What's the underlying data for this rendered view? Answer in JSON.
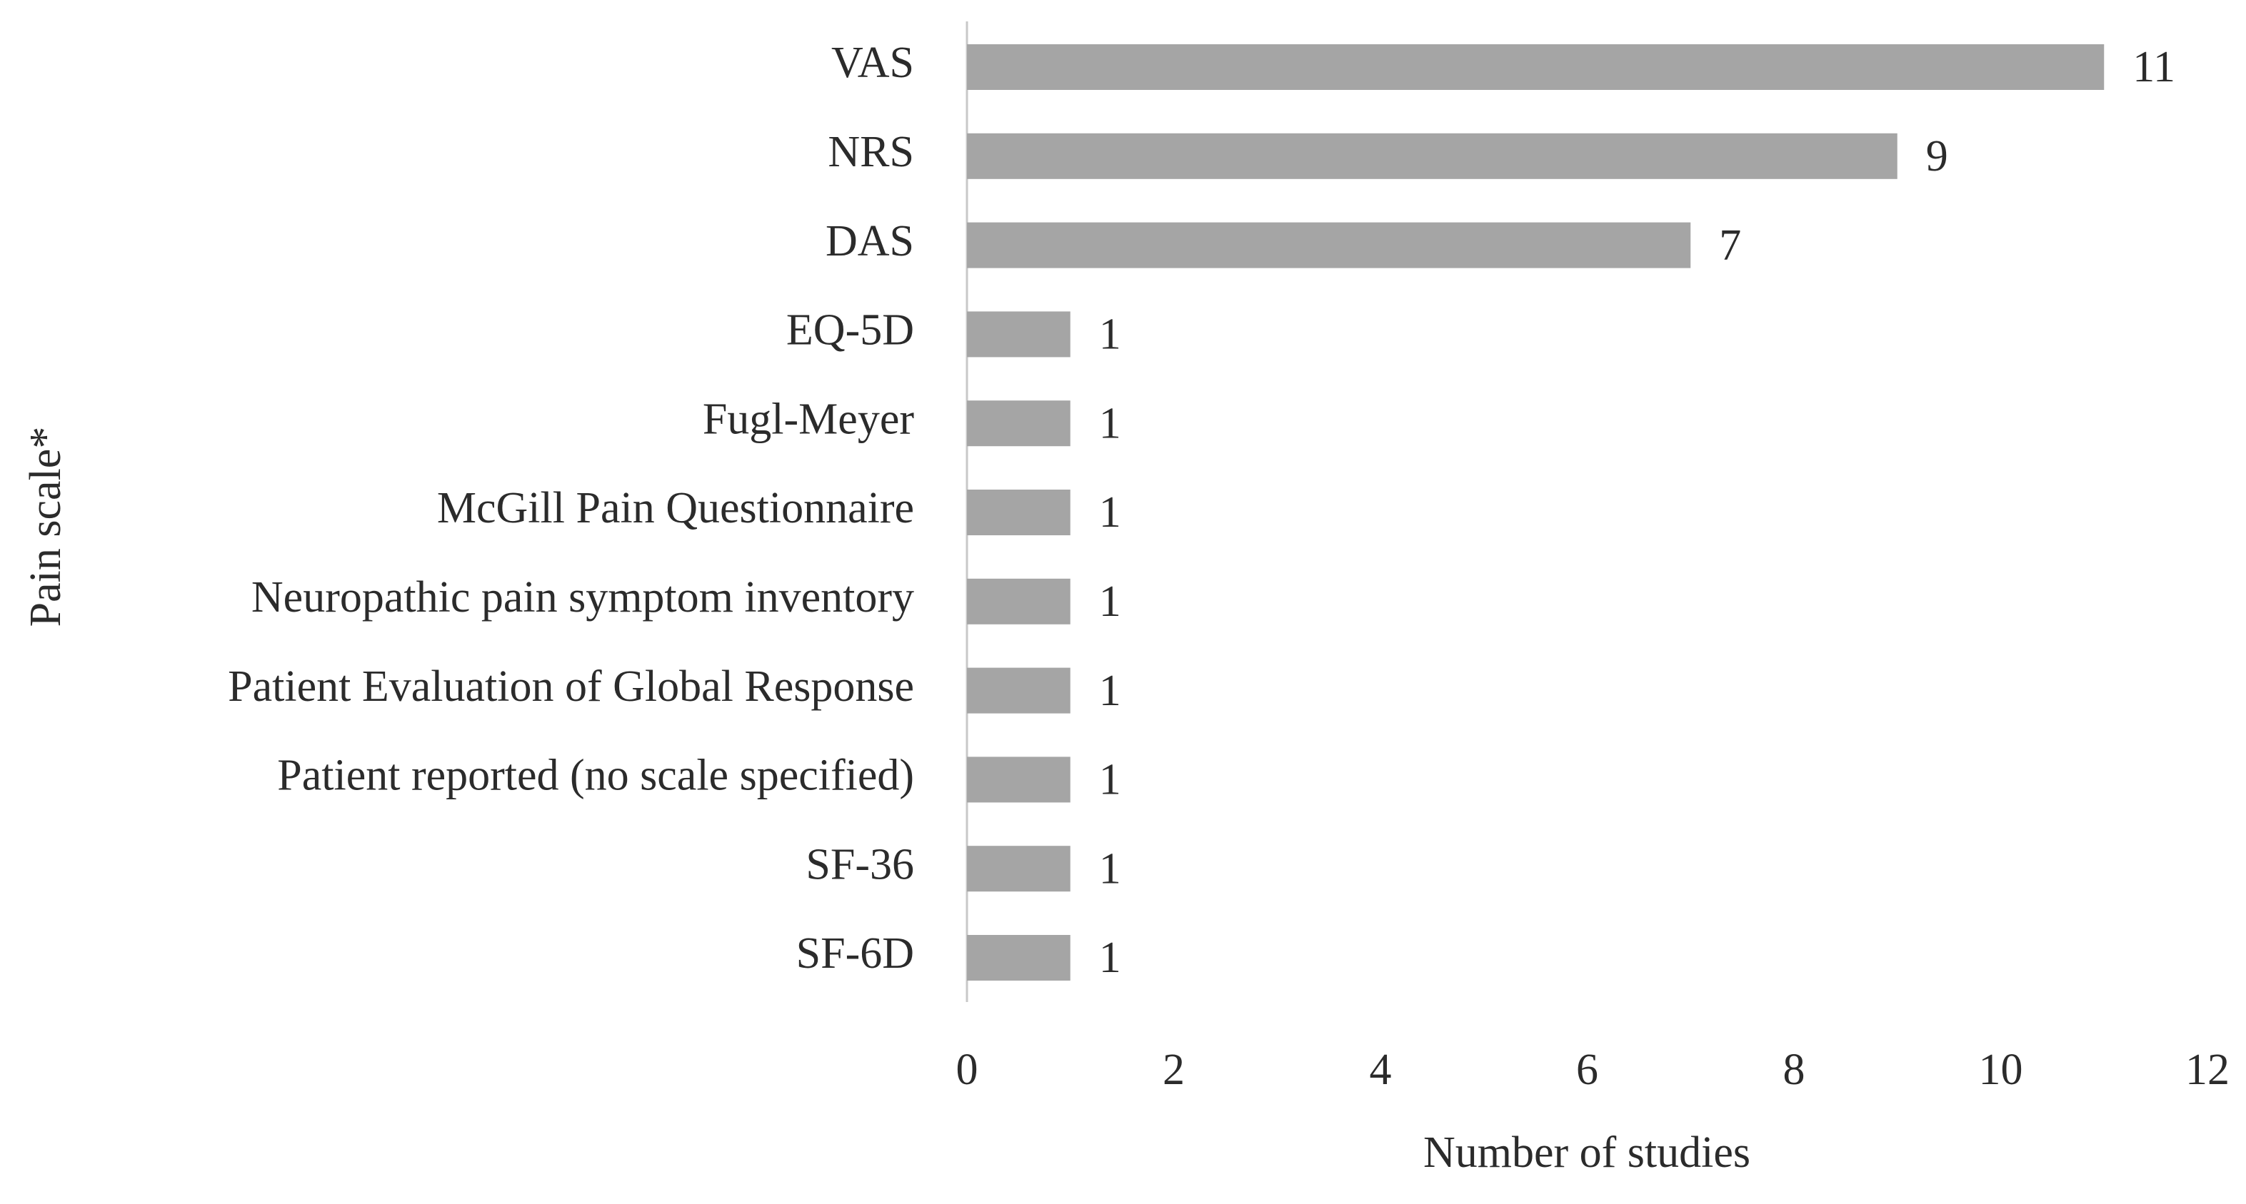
{
  "chart_data": {
    "type": "hbar",
    "x_label": "Number of studies",
    "y_label": "Pain scale*",
    "categories": [
      "VAS",
      "NRS",
      "DAS",
      "EQ-5D",
      "Fugl-Meyer",
      "McGill Pain Questionnaire",
      "Neuropathic pain symptom inventory",
      "Patient Evaluation of Global Response",
      "Patient reported (no scale specified)",
      "SF-36",
      "SF-6D"
    ],
    "values": [
      11,
      9,
      7,
      1,
      1,
      1,
      1,
      1,
      1,
      1,
      1
    ],
    "color": "#a5a5a5",
    "xlim": [
      0,
      12
    ],
    "xticks": [
      0,
      2,
      4,
      6,
      8,
      10,
      12
    ],
    "grid": false
  }
}
